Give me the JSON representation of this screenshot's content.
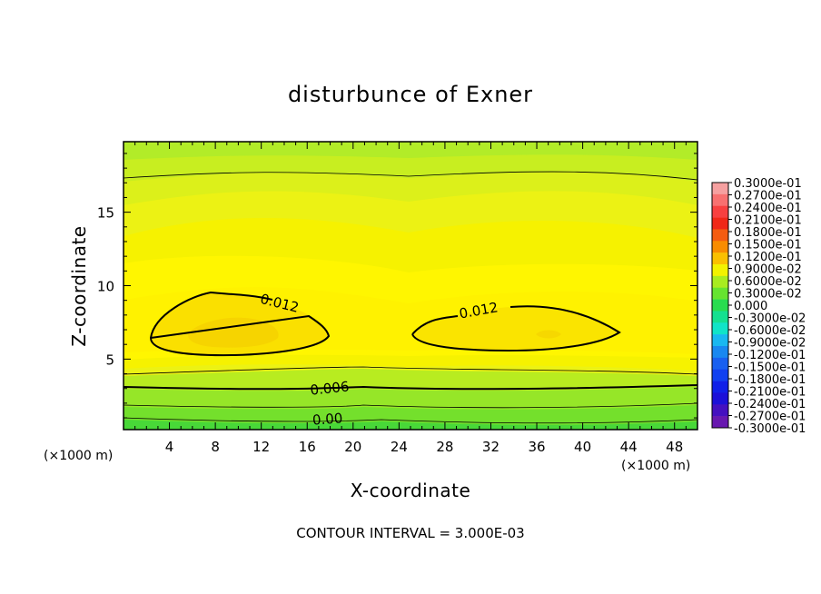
{
  "chart_data": {
    "type": "contour",
    "title": "disturbunce of Exner",
    "xlabel": "X-coordinate",
    "ylabel": "Z-coordinate",
    "x_unit_label": "(×1000 m)",
    "y_unit_label": "(×1000 m)",
    "xlim": [
      0,
      50
    ],
    "ylim": [
      0.2,
      19.8
    ],
    "xticks": [
      4,
      8,
      12,
      16,
      20,
      24,
      28,
      32,
      36,
      40,
      44,
      48
    ],
    "yticks": [
      5,
      10,
      15
    ],
    "contour_interval_text": "CONTOUR INTERVAL = 3.000E-03",
    "contour_labels": [
      {
        "text": "0.012",
        "x": 13.5,
        "z": 8.5
      },
      {
        "text": "0.012",
        "x": 31.0,
        "z": 8.0
      },
      {
        "text": "0.006",
        "x": 18.0,
        "z": 2.7
      },
      {
        "text": "0.00",
        "x": 17.8,
        "z": 0.6
      }
    ],
    "colorbar": {
      "labels": [
        "0.3000e-01",
        "0.2700e-01",
        "0.2400e-01",
        "0.2100e-01",
        "0.1800e-01",
        "0.1500e-01",
        "0.1200e-01",
        "0.9000e-02",
        "0.6000e-02",
        "0.3000e-02",
        "0.000",
        "-0.3000e-02",
        "-0.6000e-02",
        "-0.9000e-02",
        "-0.1200e-01",
        "-0.1500e-01",
        "-0.1800e-01",
        "-0.2100e-01",
        "-0.2400e-01",
        "-0.2700e-01",
        "-0.3000e-01"
      ],
      "colors": [
        "#f6a0a0",
        "#f87070",
        "#f84040",
        "#f02818",
        "#f45c10",
        "#f88c00",
        "#fac000",
        "#f2f200",
        "#a8ec20",
        "#66e430",
        "#28dc50",
        "#14e090",
        "#10e4c8",
        "#18b8f0",
        "#1888f0",
        "#1860f0",
        "#1040f0",
        "#1020e8",
        "#1c10d8",
        "#4410c0",
        "#6818b0"
      ]
    }
  }
}
